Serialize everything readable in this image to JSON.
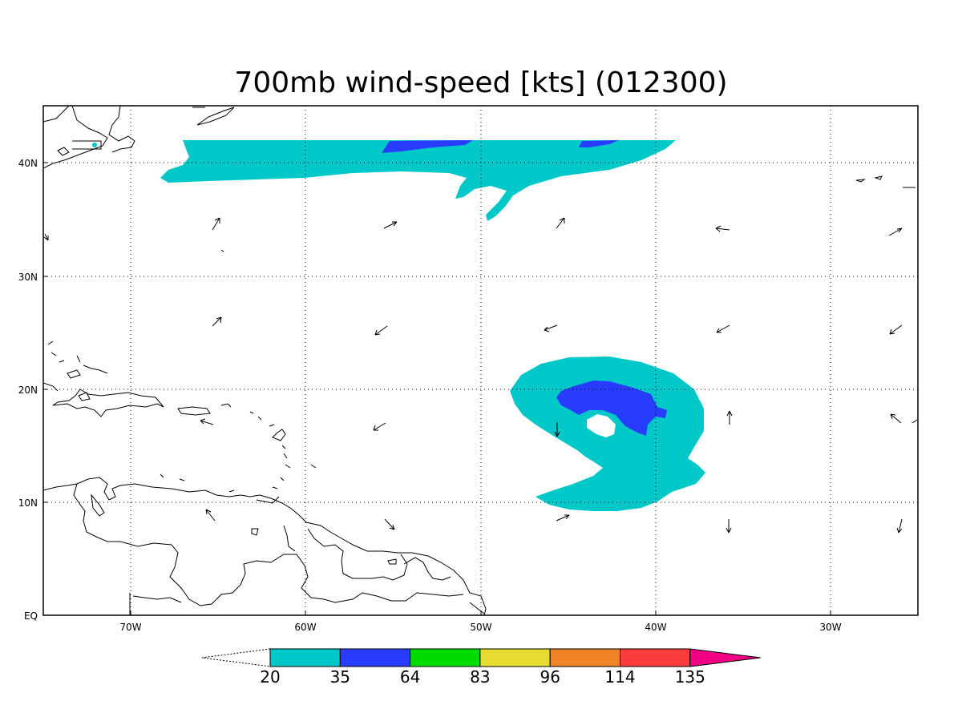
{
  "title": "700mb wind-speed [kts] (012300)",
  "map": {
    "lon_ticks": [
      "70W",
      "60W",
      "50W",
      "40W",
      "30W"
    ],
    "lat_ticks": [
      "40N",
      "30N",
      "20N",
      "10N",
      "EQ"
    ],
    "grid": true
  },
  "colorbar": {
    "levels": [
      "20",
      "35",
      "64",
      "83",
      "96",
      "114",
      "135"
    ],
    "colors": [
      "#00c8c8",
      "#283cff",
      "#00dc00",
      "#e6dc32",
      "#f08228",
      "#fa3c3c",
      "#f00082"
    ]
  },
  "shade_colors": {
    "cyan": "#00c8c8",
    "blue": "#283cff"
  }
}
